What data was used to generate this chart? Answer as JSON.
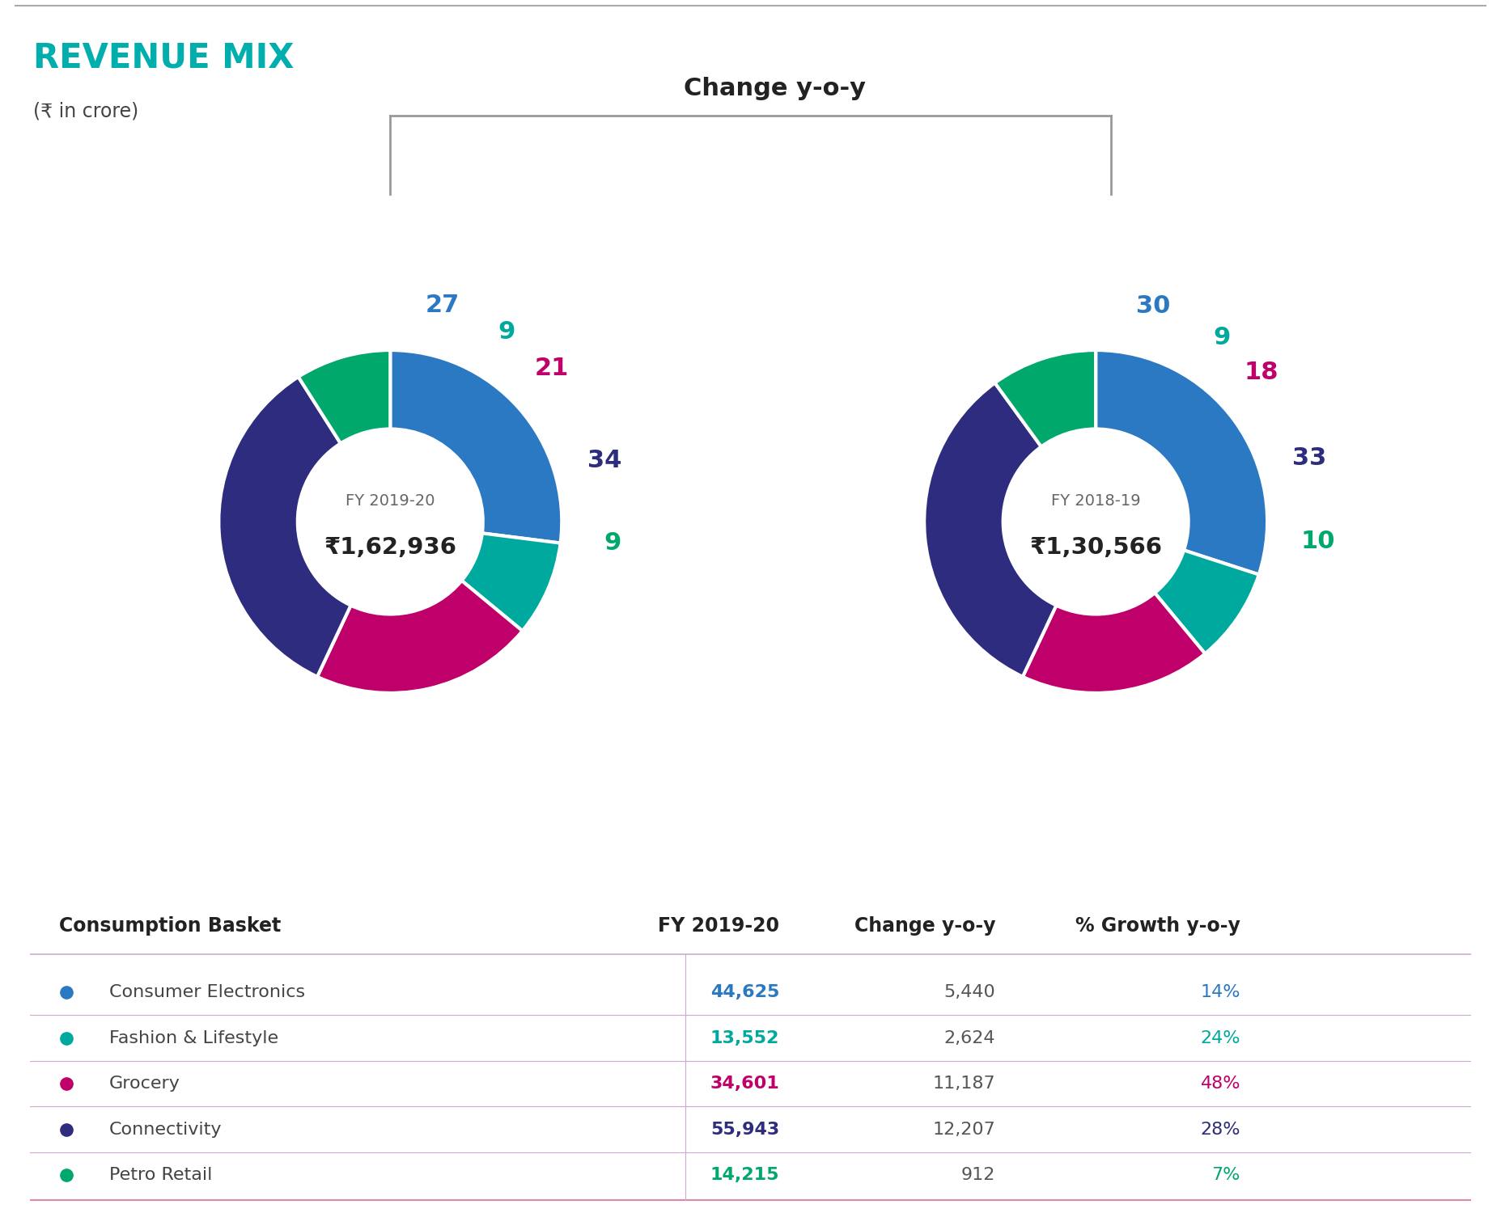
{
  "title": "REVENUE MIX",
  "subtitle": "(₹ in crore)",
  "title_color": "#00AEAE",
  "outer_background": "#FFFFFF",
  "chart_bg": "#F5E8EF",
  "fy2020_label": "FY 2019-20",
  "fy2020_value": "₹1,62,936",
  "fy2019_label": "FY 2018-19",
  "fy2019_value": "₹1,30,566",
  "segments": [
    {
      "name": "Consumer Electronics",
      "color": "#2B79C2",
      "pct_2020": 27,
      "pct_2019": 30
    },
    {
      "name": "Fashion & Lifestyle",
      "color": "#00A99D",
      "pct_2020": 9,
      "pct_2019": 9
    },
    {
      "name": "Grocery",
      "color": "#C0006A",
      "pct_2020": 21,
      "pct_2019": 18
    },
    {
      "name": "Connectivity",
      "color": "#2E2C7E",
      "pct_2020": 34,
      "pct_2019": 33
    },
    {
      "name": "Petro Retail",
      "color": "#00A86B",
      "pct_2020": 9,
      "pct_2019": 10
    }
  ],
  "table_headers": [
    "Consumption Basket",
    "FY 2019-20",
    "Change y-o-y",
    "% Growth y-o-y"
  ],
  "table_data": [
    [
      "Consumer Electronics",
      "44,625",
      "5,440",
      "14%"
    ],
    [
      "Fashion & Lifestyle",
      "13,552",
      "2,624",
      "24%"
    ],
    [
      "Grocery",
      "34,601",
      "11,187",
      "48%"
    ],
    [
      "Connectivity",
      "55,943",
      "12,207",
      "28%"
    ],
    [
      "Petro Retail",
      "14,215",
      "912",
      "7%"
    ]
  ],
  "table_col1_colors": [
    "#2B79C2",
    "#00A99D",
    "#C0006A",
    "#2E2C7E",
    "#00A86B"
  ],
  "table_val_colors": [
    "#2B79C2",
    "#00A99D",
    "#C0006A",
    "#2E2C7E",
    "#00A86B"
  ],
  "change_yoy_color": [
    "#2B79C2",
    "#00A99D",
    "#C0006A",
    "#2E2C7E",
    "#00A86B"
  ],
  "change_yoy_label": "Change y-o-y"
}
